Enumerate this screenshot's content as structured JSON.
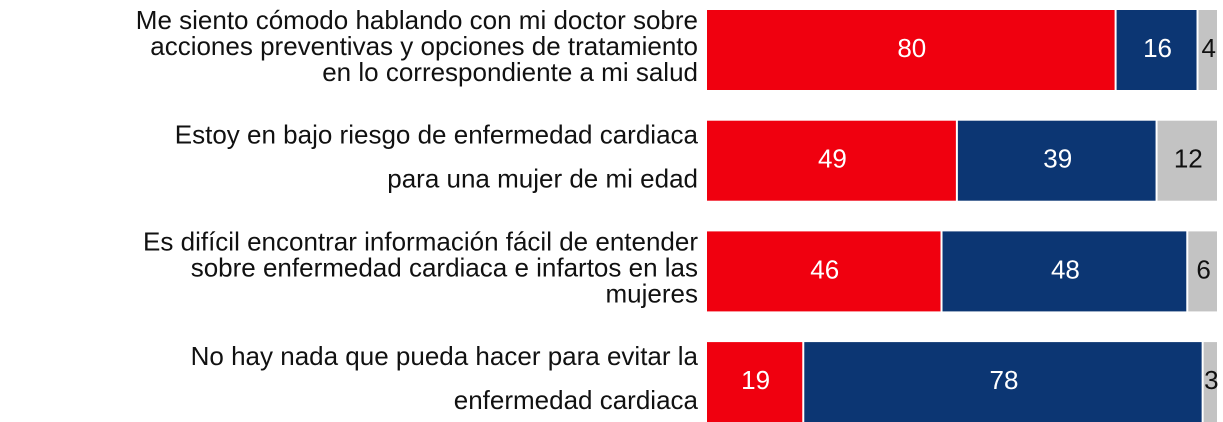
{
  "chart_data": {
    "type": "stacked_bar_horizontal",
    "categories": [
      [
        "Me siento cómodo hablando con mi doctor sobre",
        "acciones preventivas y opciones de tratamiento",
        "en lo correspondiente a mi salud"
      ],
      [
        "Estoy en bajo riesgo de enfermedad cardiaca",
        "para una mujer de mi edad"
      ],
      [
        "Es difícil encontrar información fácil de entender",
        "sobre enfermedad cardiaca e infartos en las",
        "mujeres"
      ],
      [
        "No hay nada que pueda hacer para evitar la",
        "enfermedad cardiaca"
      ]
    ],
    "series": [
      {
        "color": "#f0000f",
        "label_color": "#ffffff",
        "values": [
          80,
          49,
          46,
          19
        ]
      },
      {
        "color": "#0c3673",
        "label_color": "#ffffff",
        "values": [
          16,
          39,
          48,
          78
        ]
      },
      {
        "color": "#c3c3c3",
        "label_color": "#111111",
        "values": [
          4,
          12,
          6,
          3
        ]
      }
    ],
    "xlim": [
      0,
      100
    ]
  }
}
